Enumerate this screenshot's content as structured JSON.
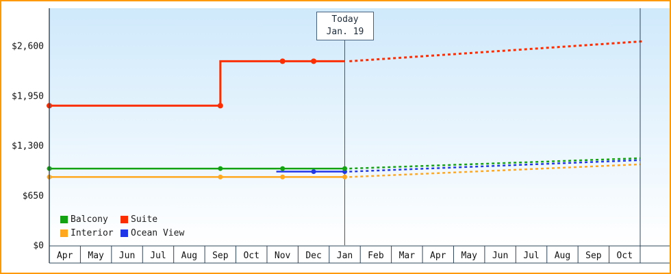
{
  "chart_data": {
    "type": "line",
    "title": "",
    "months": [
      "Apr",
      "May",
      "Jun",
      "Jul",
      "Aug",
      "Sep",
      "Oct",
      "Nov",
      "Dec",
      "Jan",
      "Feb",
      "Mar",
      "Apr",
      "May",
      "Jun",
      "Jul",
      "Aug",
      "Sep",
      "Oct"
    ],
    "y_tick_labels": [
      "$0",
      "$650",
      "$1,300",
      "$1,950",
      "$2,600"
    ],
    "y_tick_values": [
      0,
      650,
      1300,
      1950,
      2600
    ],
    "ylim": [
      0,
      3090
    ],
    "grid": false,
    "legend_position": "bottom-left",
    "today": {
      "line1": "Today",
      "line2": "Jan. 19",
      "month_index": 9
    },
    "series": [
      {
        "name": "Balcony",
        "color": "#12a212",
        "history": [
          [
            -0.5,
            1000
          ],
          [
            9,
            1000
          ]
        ],
        "markers": [
          [
            -0.5,
            1000
          ],
          [
            5,
            1000
          ],
          [
            7,
            1000
          ],
          [
            9,
            1000
          ]
        ],
        "forecast": [
          [
            9.15,
            1000
          ],
          [
            18.5,
            1135
          ]
        ]
      },
      {
        "name": "Suite",
        "color": "#fb2e01",
        "history": [
          [
            -0.5,
            1820
          ],
          [
            5,
            1820
          ],
          [
            5,
            2400
          ],
          [
            9,
            2400
          ]
        ],
        "markers": [
          [
            -0.5,
            1820
          ],
          [
            5,
            1820
          ],
          [
            7,
            2400
          ],
          [
            8,
            2400
          ]
        ],
        "forecast": [
          [
            9.15,
            2400
          ],
          [
            18.6,
            2660
          ]
        ]
      },
      {
        "name": "Interior",
        "color": "#ffa81e",
        "history": [
          [
            -0.5,
            890
          ],
          [
            9,
            890
          ]
        ],
        "markers": [
          [
            -0.5,
            890
          ],
          [
            5,
            890
          ],
          [
            7,
            890
          ],
          [
            9,
            890
          ]
        ],
        "forecast": [
          [
            9.15,
            890
          ],
          [
            18.5,
            1055
          ]
        ]
      },
      {
        "name": "Ocean View",
        "color": "#2037e8",
        "history": [
          [
            6.8,
            960
          ],
          [
            9,
            960
          ]
        ],
        "markers": [
          [
            8,
            960
          ],
          [
            9,
            960
          ]
        ],
        "forecast": [
          [
            9.15,
            960
          ],
          [
            18.5,
            1110
          ]
        ]
      }
    ]
  },
  "colors": {
    "frame_border": "#ff9900",
    "plot_gradient_top": "#cfe9fb",
    "plot_gradient_bottom": "#ffffff",
    "axis": "#2e4458",
    "today_line": "#3c5a74",
    "text": "#111111"
  }
}
